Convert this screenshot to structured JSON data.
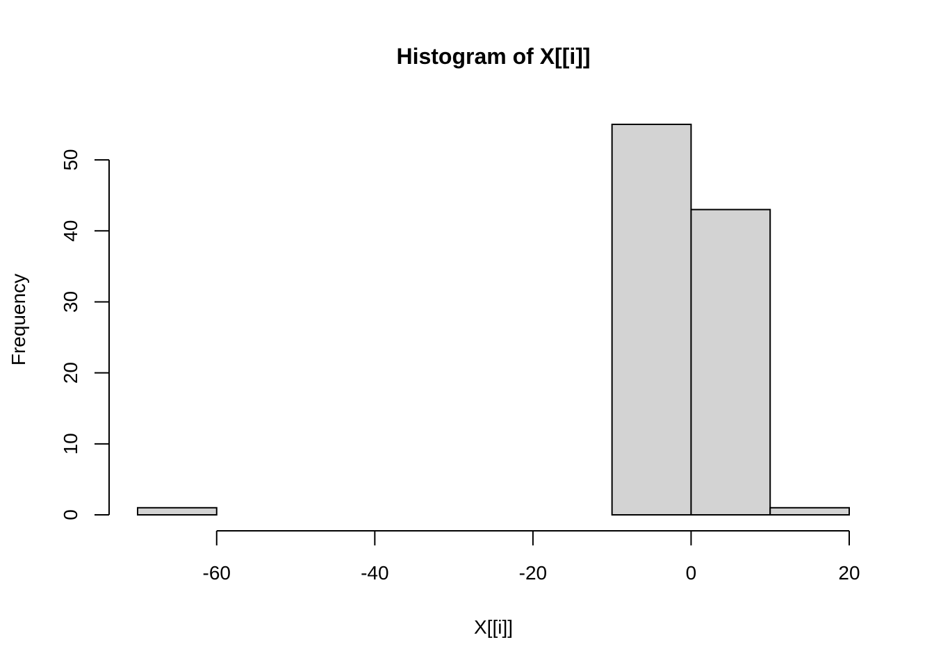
{
  "chart_data": {
    "type": "bar",
    "title": "Histogram of X[[i]]",
    "xlabel": "X[[i]]",
    "ylabel": "Frequency",
    "bins": [
      {
        "start": -70,
        "end": -60,
        "count": 1
      },
      {
        "start": -60,
        "end": -50,
        "count": 0
      },
      {
        "start": -50,
        "end": -40,
        "count": 0
      },
      {
        "start": -40,
        "end": -30,
        "count": 0
      },
      {
        "start": -30,
        "end": -20,
        "count": 0
      },
      {
        "start": -20,
        "end": -10,
        "count": 0
      },
      {
        "start": -10,
        "end": 0,
        "count": 55
      },
      {
        "start": 0,
        "end": 10,
        "count": 43
      },
      {
        "start": 10,
        "end": 20,
        "count": 1
      }
    ],
    "xticks": [
      -60,
      -40,
      -20,
      0,
      20
    ],
    "xtick_labels": [
      "-60",
      "-40",
      "-20",
      "0",
      "20"
    ],
    "yticks": [
      0,
      10,
      20,
      30,
      40,
      50
    ],
    "ytick_labels": [
      "0",
      "10",
      "20",
      "30",
      "40",
      "50"
    ],
    "xlim": [
      -70,
      20
    ],
    "ylim": [
      0,
      55
    ],
    "bar_color": "#d3d3d3",
    "grid": false,
    "legend": "none"
  }
}
